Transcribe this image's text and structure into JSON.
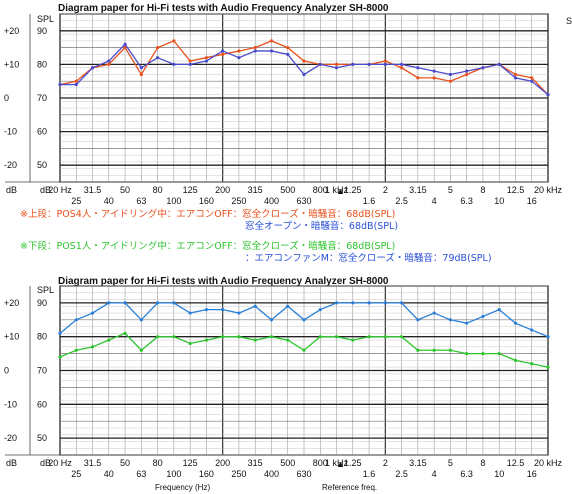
{
  "charts": [
    {
      "title": "Diagram paper for Hi-Fi tests with Audio Frequency Analyzer SH-8000",
      "unit": "SPL",
      "db_label": "dB",
      "x_ticks_top": [
        "20 Hz",
        "31.5",
        "50",
        "80",
        "125",
        "200",
        "315",
        "500",
        "800",
        "1 kHz",
        "1.25",
        "2",
        "3.15",
        "5",
        "8",
        "12.5",
        "20 kHz"
      ],
      "x_ticks_bottom": [
        "25",
        "40",
        "63",
        "100",
        "160",
        "250",
        "400",
        "630",
        "1.6",
        "2.5",
        "4",
        "6.3",
        "10",
        "16"
      ],
      "ref_marker": "▲",
      "side_letter": "S"
    },
    {
      "title": "Diagram paper for Hi-Fi tests with Audio Frequency Analyzer SH-8000",
      "unit": "SPL",
      "db_label": "dB",
      "x_ticks_top": [
        "20 Hz",
        "31.5",
        "50",
        "80",
        "125",
        "200",
        "315",
        "500",
        "800",
        "1 kHz",
        "1.25",
        "2",
        "3.15",
        "5",
        "8",
        "12.5",
        "20 kHz"
      ],
      "x_ticks_bottom": [
        "25",
        "40",
        "63",
        "100",
        "160",
        "250",
        "400",
        "630",
        "1.6",
        "2.5",
        "4",
        "6.3",
        "10",
        "16"
      ],
      "ref_marker": "▲",
      "xlabel": "Frequency (Hz)",
      "ref_label": "Reference freq."
    }
  ],
  "notes": {
    "upper": [
      "※上段：POS4人・アイドリング中：エアコンOFF：窓全クローズ・暗騒音：68dB(SPL)",
      "窓全オープン・暗騒音：68dB(SPL)"
    ],
    "lower": [
      "※下段：POS1人・アイドリング中：エアコンOFF：窓全クローズ・暗騒音：68dB(SPL)",
      "：エアコンファンM：窓全クローズ・暗騒音：79dB(SPL)"
    ],
    "colors": {
      "upper": "#e8501c",
      "lower": "#2fc42f",
      "blue": "#2a4fd8"
    }
  },
  "chart_data": [
    {
      "type": "line",
      "x": [
        "20",
        "25",
        "31.5",
        "40",
        "50",
        "63",
        "80",
        "100",
        "125",
        "160",
        "200",
        "250",
        "315",
        "400",
        "500",
        "630",
        "800",
        "1000",
        "1250",
        "1600",
        "2000",
        "2500",
        "3150",
        "4000",
        "5000",
        "6300",
        "8000",
        "10000",
        "12500",
        "16000",
        "20000"
      ],
      "y_left_ticks": [
        "+20",
        "+10",
        "0",
        "-10",
        "-20"
      ],
      "y_right_ticks": [
        "90",
        "80",
        "70",
        "60",
        "50"
      ],
      "ylim": [
        45,
        95
      ],
      "grid": true,
      "series": [
        {
          "color": "#e8501c",
          "values": [
            74,
            75,
            79,
            80,
            85,
            77,
            85,
            87,
            81,
            82,
            83,
            84,
            85,
            87,
            85,
            81,
            80,
            80,
            80,
            80,
            81,
            79,
            76,
            76,
            75,
            77,
            79,
            80,
            77,
            76,
            71
          ]
        },
        {
          "color": "#4a4acc",
          "values": [
            74,
            74,
            79,
            81,
            86,
            79,
            82,
            80,
            80,
            81,
            84,
            82,
            84,
            84,
            83,
            77,
            80,
            79,
            80,
            80,
            80,
            80,
            79,
            78,
            77,
            78,
            79,
            80,
            76,
            75,
            71
          ]
        }
      ]
    },
    {
      "type": "line",
      "x": [
        "20",
        "25",
        "31.5",
        "40",
        "50",
        "63",
        "80",
        "100",
        "125",
        "160",
        "200",
        "250",
        "315",
        "400",
        "500",
        "630",
        "800",
        "1000",
        "1250",
        "1600",
        "2000",
        "2500",
        "3150",
        "4000",
        "5000",
        "6300",
        "8000",
        "10000",
        "12500",
        "16000",
        "20000"
      ],
      "y_left_ticks": [
        "+20",
        "+10",
        "0",
        "-10",
        "-20"
      ],
      "y_right_ticks": [
        "90",
        "80",
        "70",
        "60",
        "50"
      ],
      "ylim": [
        45,
        95
      ],
      "grid": true,
      "series": [
        {
          "color": "#2a7fd8",
          "values": [
            81,
            85,
            87,
            90,
            90,
            85,
            90,
            90,
            87,
            88,
            88,
            87,
            89,
            85,
            89,
            85,
            88,
            90,
            90,
            90,
            90,
            90,
            85,
            87,
            85,
            84,
            86,
            88,
            84,
            82,
            80
          ]
        },
        {
          "color": "#2fc42f",
          "values": [
            74,
            76,
            77,
            79,
            81,
            76,
            80,
            80,
            78,
            79,
            80,
            80,
            79,
            80,
            79,
            76,
            80,
            80,
            79,
            80,
            80,
            80,
            76,
            76,
            76,
            75,
            75,
            75,
            73,
            72,
            71
          ]
        }
      ]
    }
  ]
}
